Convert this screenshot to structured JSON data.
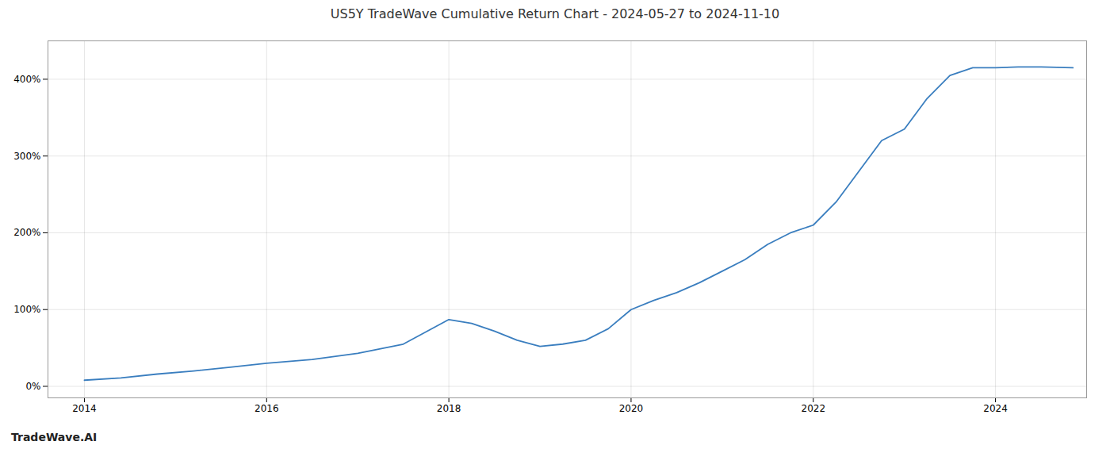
{
  "chart_data": {
    "type": "line",
    "title": "US5Y TradeWave Cumulative Return Chart - 2024-05-27 to 2024-11-10",
    "annotations": [
      "TradeWave.AI"
    ],
    "x": [
      2014.0,
      2014.4,
      2014.8,
      2015.2,
      2015.6,
      2016.0,
      2016.5,
      2017.0,
      2017.5,
      2018.0,
      2018.25,
      2018.5,
      2018.75,
      2019.0,
      2019.25,
      2019.5,
      2019.75,
      2020.0,
      2020.25,
      2020.5,
      2020.75,
      2021.0,
      2021.25,
      2021.5,
      2021.75,
      2022.0,
      2022.25,
      2022.5,
      2022.75,
      2023.0,
      2023.25,
      2023.5,
      2023.75,
      2024.0,
      2024.25,
      2024.5,
      2024.85
    ],
    "values": [
      8,
      11,
      16,
      20,
      25,
      30,
      35,
      43,
      55,
      87,
      82,
      72,
      60,
      52,
      55,
      60,
      75,
      100,
      112,
      122,
      135,
      150,
      165,
      185,
      200,
      210,
      240,
      280,
      320,
      335,
      375,
      405,
      415,
      415,
      416,
      416,
      415
    ],
    "color": "#3a7ebf",
    "xlim": [
      2013.6,
      2025.0
    ],
    "ylim": [
      -15,
      450
    ],
    "xticks": [
      2014,
      2016,
      2018,
      2020,
      2022,
      2024
    ],
    "yticks": [
      {
        "value": 0,
        "label": "0%"
      },
      {
        "value": 100,
        "label": "100%"
      },
      {
        "value": 200,
        "label": "200%"
      },
      {
        "value": 300,
        "label": "300%"
      },
      {
        "value": 400,
        "label": "400%"
      }
    ],
    "grid": true
  }
}
